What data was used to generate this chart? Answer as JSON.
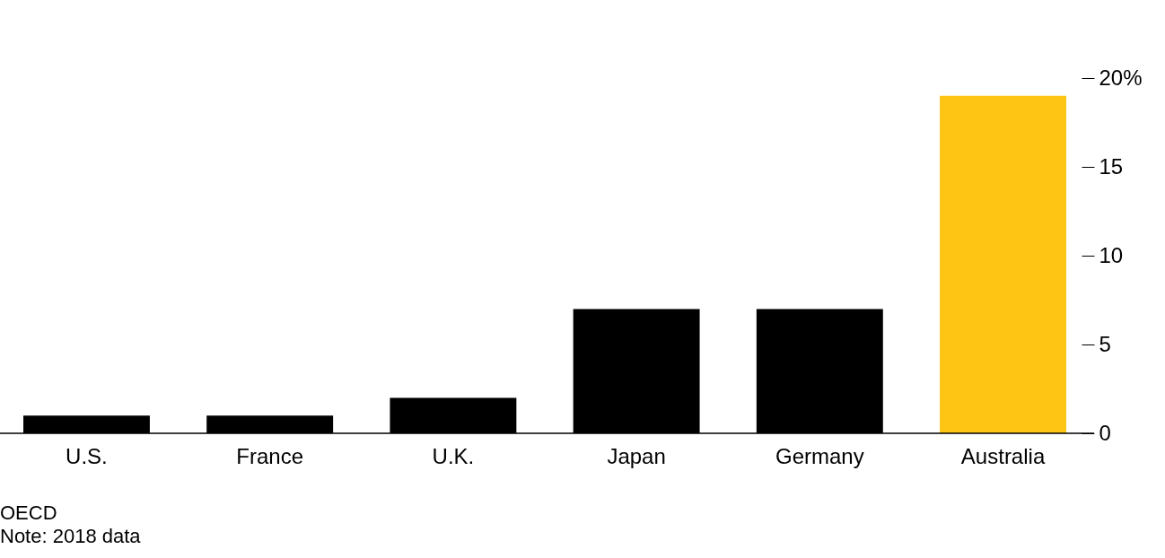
{
  "chart_data": {
    "type": "bar",
    "categories": [
      "U.S.",
      "France",
      "U.K.",
      "Japan",
      "Germany",
      "Australia"
    ],
    "values": [
      1.0,
      1.0,
      2.0,
      7.0,
      7.0,
      19.0
    ],
    "colors": [
      "#000000",
      "#000000",
      "#000000",
      "#000000",
      "#000000",
      "#fec514"
    ],
    "ylim": [
      0,
      20
    ],
    "yticks": [
      0,
      5,
      10,
      {
        "value": 20,
        "label": "20%"
      },
      15
    ],
    "grid": false,
    "annotations": [
      "OECD",
      "Note: 2018 data"
    ]
  }
}
